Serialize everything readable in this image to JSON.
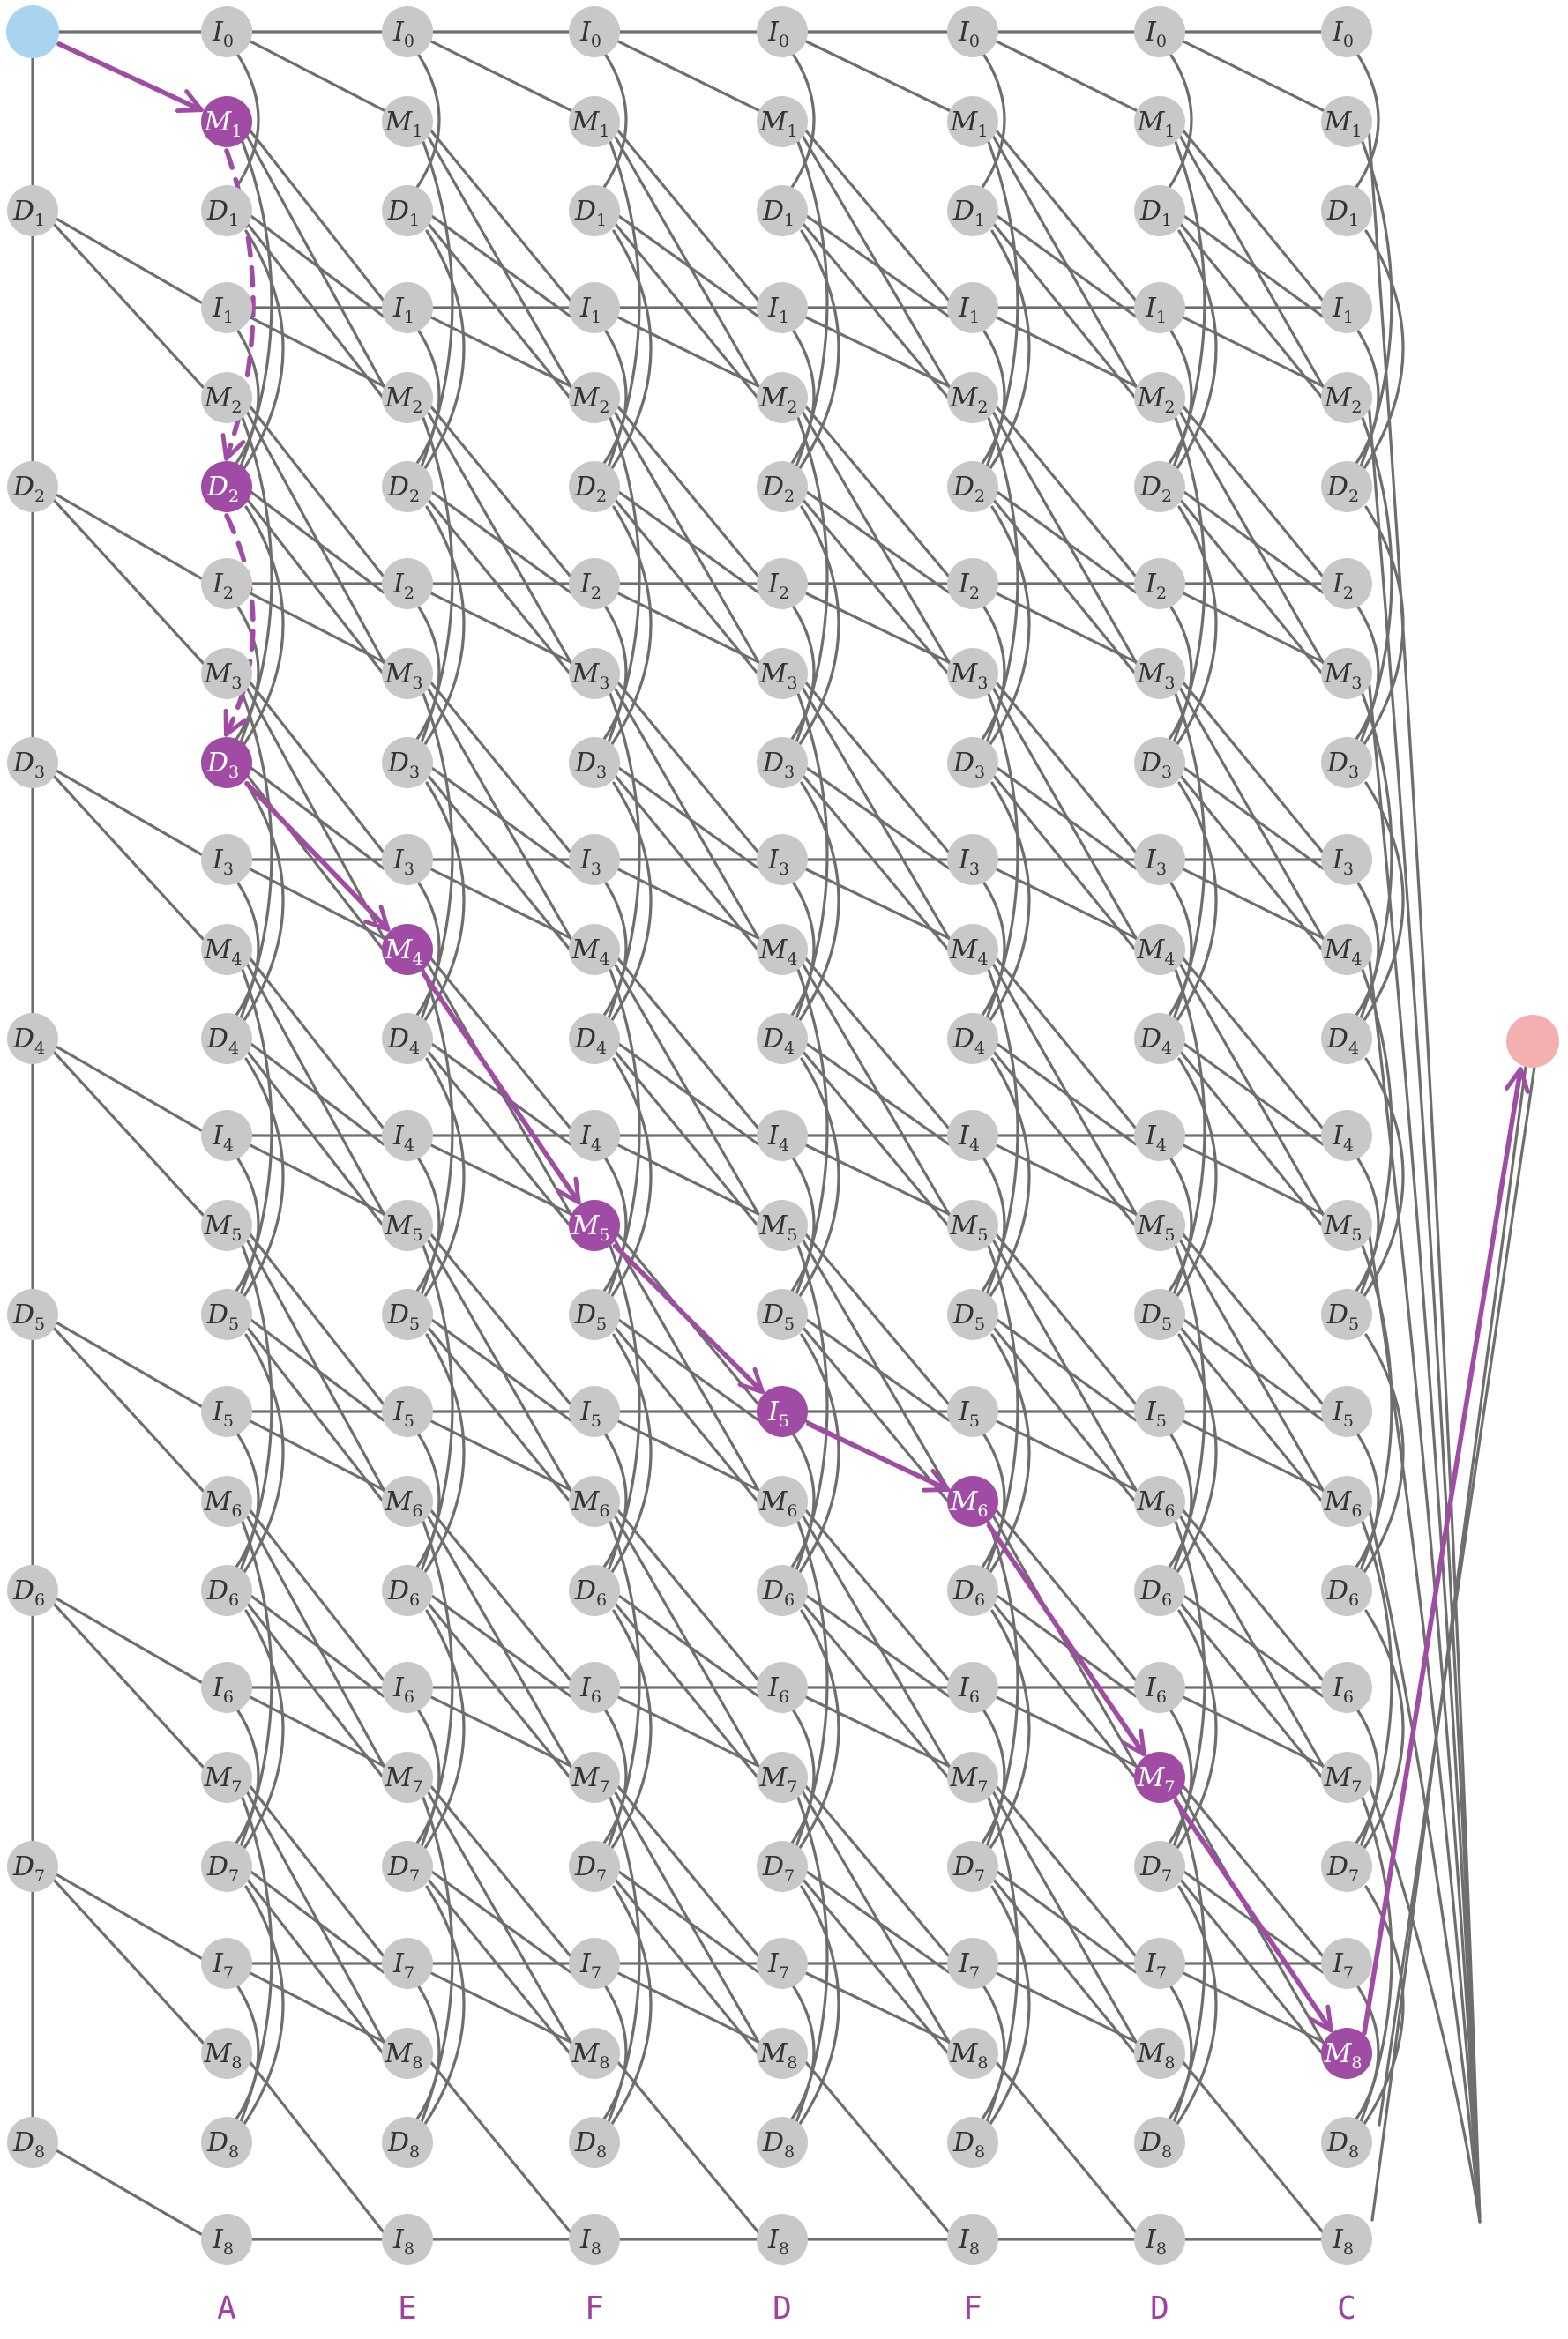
{
  "colors": {
    "background": "#ffffff",
    "node": "#c8c8c8",
    "node_label": "#333333",
    "edge": "#6e6e6e",
    "path": "#a04ca4",
    "path_label": "#ffffff",
    "start": "#a8d4f0",
    "end": "#f4b0b0",
    "column_label": "#a040a0"
  },
  "sequence": [
    "A",
    "E",
    "F",
    "D",
    "F",
    "D",
    "C"
  ],
  "model_length": 8,
  "node_types": [
    "M",
    "I",
    "D"
  ],
  "highlighted_path": [
    {
      "state": "M",
      "index": 1,
      "column": 0,
      "edge": "solid"
    },
    {
      "state": "D",
      "index": 2,
      "column": 0,
      "edge": "dashed"
    },
    {
      "state": "D",
      "index": 3,
      "column": 0,
      "edge": "dashed"
    },
    {
      "state": "M",
      "index": 4,
      "column": 1,
      "edge": "solid"
    },
    {
      "state": "M",
      "index": 5,
      "column": 2,
      "edge": "solid"
    },
    {
      "state": "I",
      "index": 5,
      "column": 3,
      "edge": "solid"
    },
    {
      "state": "M",
      "index": 6,
      "column": 4,
      "edge": "solid"
    },
    {
      "state": "M",
      "index": 7,
      "column": 5,
      "edge": "solid"
    },
    {
      "state": "M",
      "index": 8,
      "column": 6,
      "edge": "solid"
    }
  ],
  "start_node": "start",
  "end_node": "end"
}
